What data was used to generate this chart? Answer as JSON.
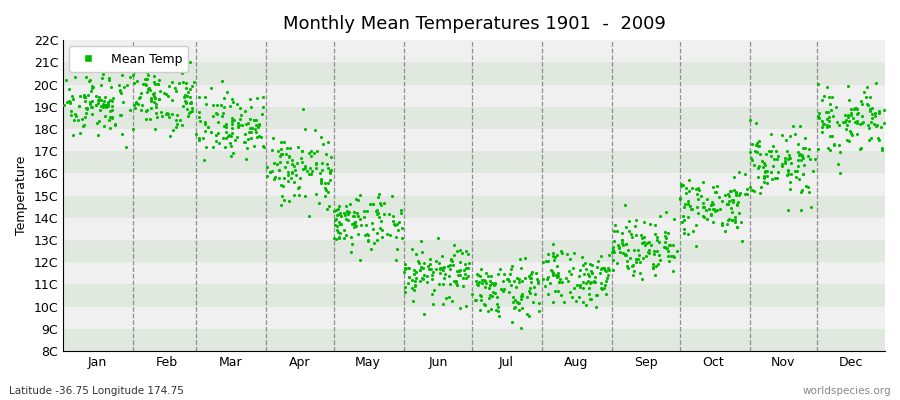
{
  "title": "Monthly Mean Temperatures 1901  -  2009",
  "ylabel": "Temperature",
  "xlabel_bottom": "Latitude -36.75 Longitude 174.75",
  "watermark": "worldspecies.org",
  "ylim": [
    8,
    22
  ],
  "ytick_labels": [
    "8C",
    "9C",
    "10C",
    "11C",
    "12C",
    "13C",
    "14C",
    "15C",
    "16C",
    "17C",
    "18C",
    "19C",
    "20C",
    "21C",
    "22C"
  ],
  "ytick_values": [
    8,
    9,
    10,
    11,
    12,
    13,
    14,
    15,
    16,
    17,
    18,
    19,
    20,
    21,
    22
  ],
  "months": [
    "Jan",
    "Feb",
    "Mar",
    "Apr",
    "May",
    "Jun",
    "Jul",
    "Aug",
    "Sep",
    "Oct",
    "Nov",
    "Dec"
  ],
  "month_mid_days": [
    16,
    47,
    75,
    106,
    136,
    167,
    197,
    228,
    259,
    289,
    320,
    350
  ],
  "month_start_days": [
    1,
    32,
    60,
    91,
    121,
    152,
    182,
    213,
    244,
    274,
    305,
    335
  ],
  "month_end_days": [
    31,
    59,
    90,
    120,
    151,
    181,
    212,
    243,
    273,
    304,
    334,
    365
  ],
  "xmin": 1,
  "xmax": 365,
  "mean_temps": [
    19.2,
    19.5,
    18.2,
    16.2,
    13.8,
    11.5,
    10.8,
    11.3,
    12.8,
    14.5,
    16.4,
    18.3
  ],
  "std_temps": [
    0.75,
    0.8,
    0.75,
    0.75,
    0.7,
    0.65,
    0.6,
    0.65,
    0.65,
    0.7,
    0.8,
    0.8
  ],
  "n_years": 109,
  "dot_color": "#00bb00",
  "dot_size": 5,
  "background_color": "#ffffff",
  "band_colors": [
    "#e0e8e0",
    "#f0f0f0"
  ],
  "dashed_line_color": "#777777",
  "legend_label": "Mean Temp",
  "title_fontsize": 13,
  "axis_fontsize": 9,
  "tick_fontsize": 9
}
